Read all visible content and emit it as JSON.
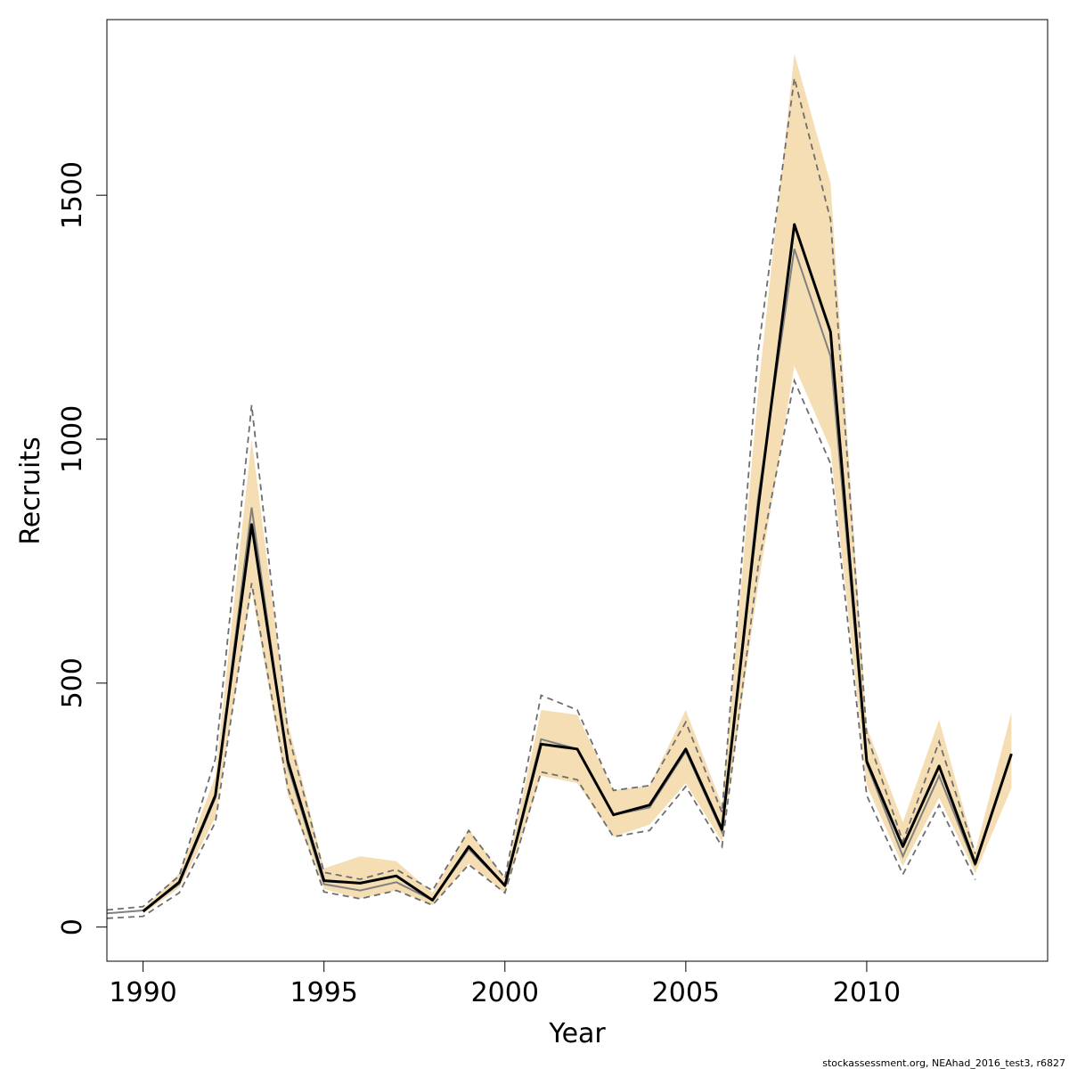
{
  "chart_data": {
    "type": "line",
    "xlabel": "Year",
    "ylabel": "Recruits",
    "xlim": [
      1989,
      2015
    ],
    "ylim": [
      -70,
      1860
    ],
    "x_ticks": [
      1990,
      1995,
      2000,
      2005,
      2010
    ],
    "y_ticks": [
      0,
      500,
      1000,
      1500
    ],
    "grid": false,
    "legend": "none",
    "colors": {
      "band": "#f5deb3",
      "main_line": "#000000",
      "alt_line": "#808080",
      "alt_ci": "#6e6e6e"
    },
    "x": [
      1989,
      1990,
      1991,
      1992,
      1993,
      1994,
      1995,
      1996,
      1997,
      1998,
      1999,
      2000,
      2001,
      2002,
      2003,
      2004,
      2005,
      2006,
      2007,
      2008,
      2009,
      2010,
      2011,
      2012,
      2013,
      2014
    ],
    "series": [
      {
        "role": "uncertainty band lower",
        "values": [
          null,
          27,
          80,
          225,
          690,
          270,
          78,
          58,
          75,
          45,
          130,
          70,
          310,
          295,
          185,
          210,
          295,
          175,
          700,
          1150,
          980,
          290,
          125,
          265,
          110,
          285
        ]
      },
      {
        "role": "uncertainty band upper",
        "values": [
          null,
          37,
          110,
          310,
          1000,
          420,
          120,
          145,
          135,
          70,
          200,
          100,
          445,
          435,
          280,
          290,
          445,
          250,
          1100,
          1790,
          1525,
          410,
          215,
          425,
          155,
          440
        ]
      },
      {
        "role": "main estimate",
        "values": [
          null,
          32,
          92,
          270,
          825,
          340,
          95,
          90,
          105,
          55,
          165,
          85,
          375,
          365,
          230,
          250,
          365,
          200,
          860,
          1440,
          1220,
          340,
          165,
          330,
          130,
          355
        ]
      },
      {
        "role": "alternative estimate",
        "values": [
          28,
          34,
          88,
          265,
          860,
          330,
          88,
          75,
          92,
          55,
          160,
          85,
          385,
          365,
          230,
          245,
          360,
          195,
          880,
          1390,
          1170,
          335,
          145,
          310,
          125,
          null
        ]
      },
      {
        "role": "alternative upper CI",
        "values": [
          35,
          42,
          105,
          345,
          1070,
          400,
          112,
          98,
          118,
          75,
          198,
          100,
          475,
          445,
          280,
          290,
          420,
          235,
          1180,
          1740,
          1450,
          395,
          175,
          380,
          150,
          null
        ]
      },
      {
        "role": "alternative lower CI",
        "values": [
          18,
          22,
          70,
          215,
          705,
          285,
          72,
          58,
          75,
          45,
          128,
          70,
          318,
          302,
          185,
          198,
          288,
          165,
          740,
          1120,
          950,
          270,
          108,
          250,
          97,
          null
        ]
      }
    ]
  },
  "footer_text": "stockassessment.org, NEAhad_2016_test3, r6827"
}
